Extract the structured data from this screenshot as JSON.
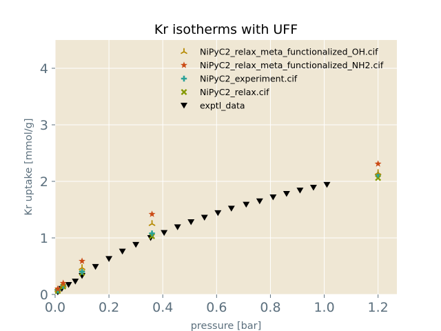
{
  "chart_data": {
    "type": "scatter",
    "title": "Kr isotherms with UFF",
    "xlabel": "pressure [bar]",
    "ylabel": "Kr uptake [mmol/g]",
    "xlim": [
      0.0,
      1.27
    ],
    "ylim": [
      0.0,
      4.5
    ],
    "xticks": [
      "0.0",
      "0.2",
      "0.4",
      "0.6",
      "0.8",
      "1.0",
      "1.2"
    ],
    "yticks": [
      "0",
      "1",
      "2",
      "3",
      "4"
    ],
    "grid": true,
    "legend_position": "top-right",
    "colors": {
      "background": "#efe7d4",
      "grid": "#ffffff",
      "tick": "#5b6f7d"
    },
    "series": [
      {
        "name": "NiPyC2_relax_meta_functionalized_OH.cif",
        "marker": "tri-up",
        "color": "#b58900",
        "x": [
          0.01,
          0.03,
          0.1,
          0.36,
          1.2
        ],
        "y": [
          0.08,
          0.16,
          0.47,
          1.25,
          2.15
        ]
      },
      {
        "name": "NiPyC2_relax_meta_functionalized_NH2.cif",
        "marker": "star",
        "color": "#cb4b16",
        "x": [
          0.01,
          0.03,
          0.1,
          0.36,
          1.2
        ],
        "y": [
          0.1,
          0.2,
          0.59,
          1.42,
          2.31
        ]
      },
      {
        "name": "NiPyC2_experiment.cif",
        "marker": "plus",
        "color": "#2aa198",
        "x": [
          0.01,
          0.03,
          0.1,
          0.36,
          1.2
        ],
        "y": [
          0.07,
          0.15,
          0.4,
          1.08,
          2.12
        ]
      },
      {
        "name": "NiPyC2_relax.cif",
        "marker": "x",
        "color": "#859900",
        "x": [
          0.01,
          0.03,
          0.1,
          0.36,
          1.2
        ],
        "y": [
          0.06,
          0.14,
          0.38,
          1.03,
          2.06
        ]
      },
      {
        "name": "exptl_data",
        "marker": "triangle-down",
        "color": "#000000",
        "x": [
          0.01,
          0.025,
          0.05,
          0.075,
          0.1,
          0.15,
          0.2,
          0.25,
          0.3,
          0.355,
          0.405,
          0.455,
          0.505,
          0.555,
          0.605,
          0.655,
          0.71,
          0.76,
          0.81,
          0.86,
          0.91,
          0.96,
          1.01
        ],
        "y": [
          0.04,
          0.1,
          0.17,
          0.23,
          0.33,
          0.49,
          0.63,
          0.76,
          0.88,
          1.0,
          1.09,
          1.19,
          1.28,
          1.36,
          1.44,
          1.52,
          1.59,
          1.65,
          1.72,
          1.78,
          1.84,
          1.89,
          1.94
        ]
      }
    ]
  }
}
